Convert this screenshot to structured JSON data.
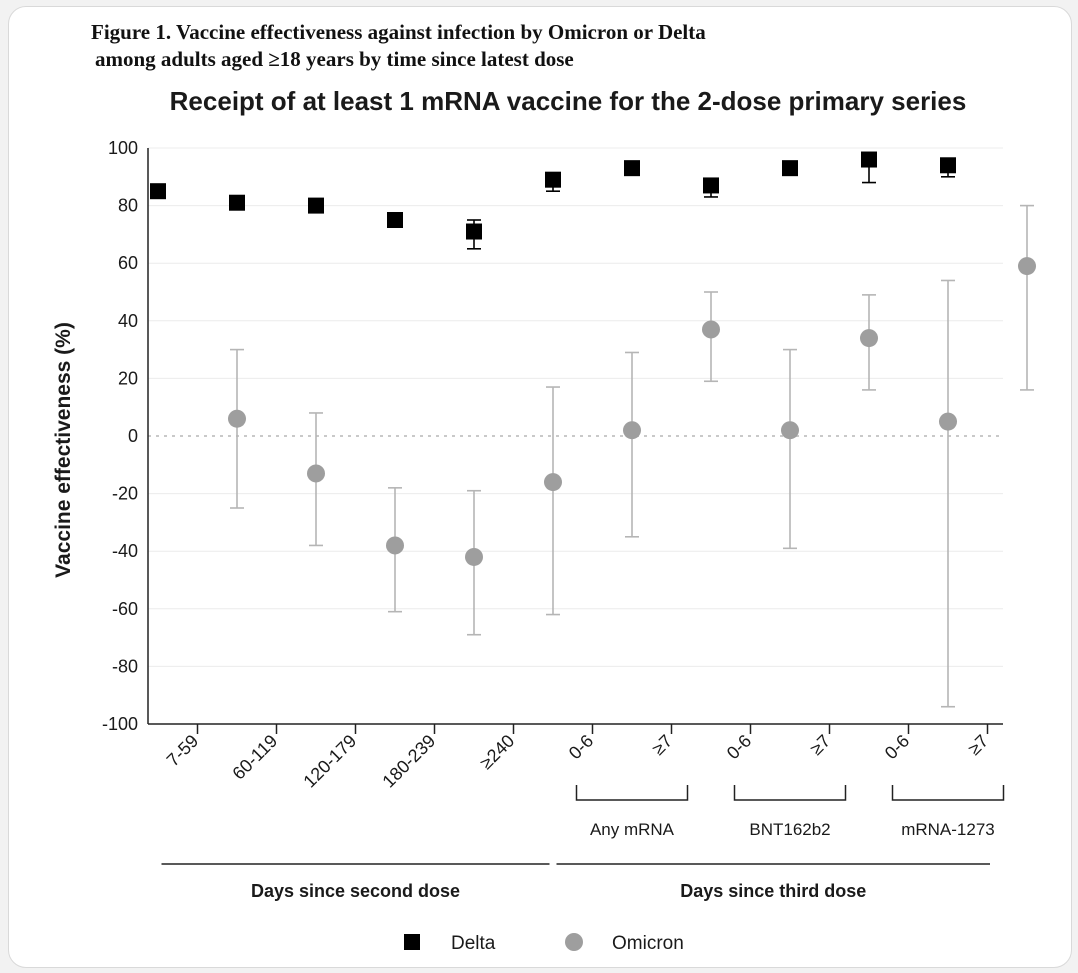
{
  "figure": {
    "title_line1": "Figure 1. Vaccine effectiveness against infection by Omicron or Delta",
    "title_line2": "among adults aged ≥18 years by time since latest dose"
  },
  "chart_data": {
    "type": "scatter",
    "title": "Receipt of at least 1 mRNA vaccine for the 2-dose primary series",
    "ylabel": "Vaccine effectiveness (%)",
    "xlabel": "",
    "ylim": [
      -100,
      100
    ],
    "yticks": [
      100,
      80,
      60,
      40,
      20,
      0,
      -20,
      -40,
      -60,
      -80,
      -100
    ],
    "grid": "horizontal",
    "reference_line": 0,
    "categories": [
      "7-59",
      "60-119",
      "120-179",
      "180-239",
      "≥240",
      "0-6",
      "≥7",
      "0-6",
      "≥7",
      "0-6",
      "≥7"
    ],
    "subgroups": [
      {
        "label": "Any mRNA",
        "start": 5,
        "end": 6
      },
      {
        "label": "BNT162b2",
        "start": 7,
        "end": 8
      },
      {
        "label": "mRNA-1273",
        "start": 9,
        "end": 10
      }
    ],
    "sections": [
      {
        "label": "Days since second dose",
        "start": 0,
        "end": 4
      },
      {
        "label": "Days since third dose",
        "start": 5,
        "end": 10
      }
    ],
    "legend_position": "bottom-center",
    "series": [
      {
        "name": "Delta",
        "marker": "square",
        "color": "#000000",
        "values": [
          85,
          81,
          80,
          75,
          71,
          89,
          93,
          87,
          93,
          96,
          94
        ],
        "lower": [
          84,
          80,
          79,
          74,
          65,
          85,
          92,
          83,
          92,
          88,
          90
        ],
        "upper": [
          86,
          82,
          81,
          76,
          75,
          90,
          94,
          88,
          94,
          97,
          95
        ]
      },
      {
        "name": "Omicron",
        "marker": "circle",
        "color": "#9e9e9e",
        "values": [
          6,
          -13,
          -38,
          -42,
          -16,
          2,
          37,
          2,
          34,
          5,
          59
        ],
        "lower": [
          -25,
          -38,
          -61,
          -69,
          -62,
          -35,
          19,
          -39,
          16,
          -94,
          16
        ],
        "upper": [
          30,
          8,
          -18,
          -19,
          17,
          29,
          50,
          30,
          49,
          54,
          80
        ]
      }
    ]
  }
}
